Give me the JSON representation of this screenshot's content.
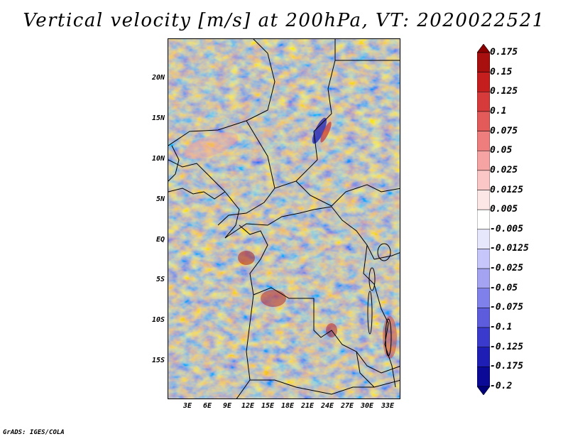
{
  "title": "Vertical velocity [m/s] at 200hPa, VT: 2020022521",
  "credit": "GrADS: IGES/COLA",
  "map": {
    "region": "Central Africa",
    "lat_labels": [
      "20N",
      "15N",
      "10N",
      "5N",
      "EQ",
      "5S",
      "10S",
      "15S"
    ],
    "lon_labels": [
      "3E",
      "6E",
      "9E",
      "12E",
      "15E",
      "18E",
      "21E",
      "24E",
      "27E",
      "30E",
      "33E"
    ]
  },
  "colorbar": {
    "labels": [
      "0.175",
      "0.15",
      "0.125",
      "0.1",
      "0.075",
      "0.05",
      "0.025",
      "0.0125",
      "0.005",
      "-0.005",
      "-0.0125",
      "-0.025",
      "-0.05",
      "-0.075",
      "-0.1",
      "-0.125",
      "-0.175",
      "-0.2"
    ],
    "colors": [
      "#8b0000",
      "#a80f0f",
      "#c41e1e",
      "#d63a3a",
      "#e35a5a",
      "#ee7e7e",
      "#f5a3a3",
      "#fac6c6",
      "#fde6e6",
      "#ffffff",
      "#e6e6fd",
      "#c6c6fa",
      "#a3a3f2",
      "#8080ea",
      "#5c5cdc",
      "#3a3acc",
      "#1e1eb4",
      "#0a0a96",
      "#00007a"
    ]
  }
}
